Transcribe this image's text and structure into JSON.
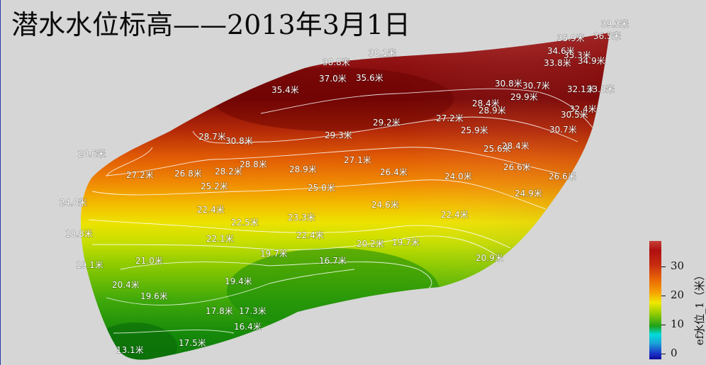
{
  "title": "潜水水位标高——2013年3月1日",
  "legend": {
    "title": "ef水位_1（米）",
    "ticks": [
      "30",
      "20",
      "10",
      "0"
    ]
  },
  "labels": [
    "39.3米",
    "35.9米",
    "36.5米",
    "34.6米",
    "35.3米",
    "33.8米",
    "34.9米",
    "38.8米",
    "38.1米",
    "37.0米",
    "35.6米",
    "35.4米",
    "30.8米",
    "30.7米",
    "32.1米",
    "33.8米",
    "28.4米",
    "29.9米",
    "28.9米",
    "32.4米",
    "30.5米",
    "27.2米",
    "25.9米",
    "30.7米",
    "29.2米",
    "28.7米",
    "30.8米",
    "29.3米",
    "25.6米",
    "28.4米",
    "20.6米",
    "27.1米",
    "26.6米",
    "26.6米",
    "27.2米",
    "26.8米",
    "28.2米",
    "28.8米",
    "28.9米",
    "26.4米",
    "24.0米",
    "25.2米",
    "25.0米",
    "24.9米",
    "24.0米",
    "24.6米",
    "22.4米",
    "22.4米",
    "22.5米",
    "23.3米",
    "18.8米",
    "22.1米",
    "22.4米",
    "19.7米",
    "20.2米",
    "19.7米",
    "16.7米",
    "20.9米",
    "19.1米",
    "21.0米",
    "20.4米",
    "19.4米",
    "19.6米",
    "17.8米",
    "17.3米",
    "16.4米",
    "17.5米",
    "13.1米"
  ],
  "colors": {
    "background": "#d6d6d6",
    "label_text": "#ffffff",
    "contour": "#ffffff"
  }
}
